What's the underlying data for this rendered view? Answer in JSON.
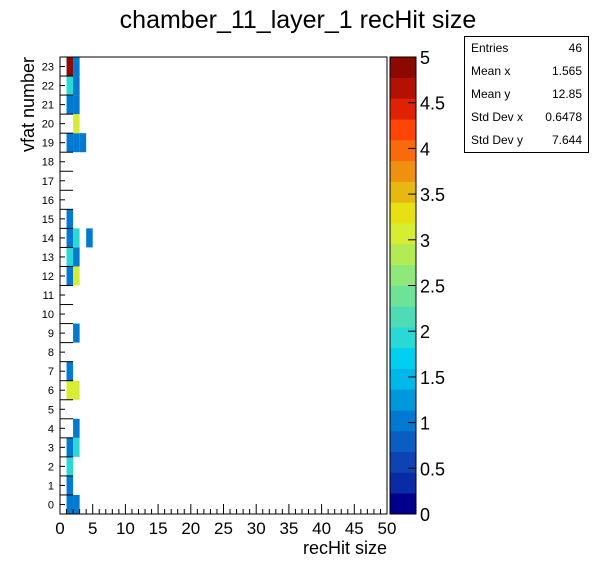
{
  "chart_data": {
    "type": "heatmap",
    "title": "chamber_11_layer_1 recHit size",
    "xlabel": "recHit size",
    "ylabel": "vfat number",
    "xlim": [
      0,
      50
    ],
    "ylim": [
      0,
      24
    ],
    "x_ticks": [
      "0",
      "5",
      "10",
      "15",
      "20",
      "25",
      "30",
      "35",
      "40",
      "45",
      "50"
    ],
    "y_ticks": [
      "0",
      "1",
      "2",
      "3",
      "4",
      "5",
      "6",
      "7",
      "8",
      "9",
      "10",
      "11",
      "12",
      "13",
      "14",
      "15",
      "16",
      "17",
      "18",
      "19",
      "20",
      "21",
      "22",
      "23"
    ],
    "z_range": [
      0,
      5
    ],
    "z_ticks": [
      "0",
      "0.5",
      "1",
      "1.5",
      "2",
      "2.5",
      "3",
      "3.5",
      "4",
      "4.5",
      "5"
    ],
    "palette": [
      "#00008c",
      "#0a2ba6",
      "#0d43b3",
      "#0a5ec2",
      "#007ad0",
      "#0098dd",
      "#00b7ea",
      "#00cff2",
      "#2ad9d6",
      "#4ddcb6",
      "#6ee397",
      "#8fe87a",
      "#b3eb55",
      "#d6ed34",
      "#e6e014",
      "#e8b812",
      "#f09010",
      "#f86a0c",
      "#ff4408",
      "#e02204",
      "#b51102",
      "#8a0a00"
    ],
    "cells": [
      {
        "x": 1,
        "y": 0,
        "z": 1
      },
      {
        "x": 2,
        "y": 0,
        "z": 1
      },
      {
        "x": 1,
        "y": 1,
        "z": 1
      },
      {
        "x": 1,
        "y": 2,
        "z": 2
      },
      {
        "x": 1,
        "y": 3,
        "z": 1
      },
      {
        "x": 2,
        "y": 3,
        "z": 2
      },
      {
        "x": 2,
        "y": 4,
        "z": 1
      },
      {
        "x": 1,
        "y": 6,
        "z": 3
      },
      {
        "x": 2,
        "y": 6,
        "z": 3
      },
      {
        "x": 1,
        "y": 7,
        "z": 1
      },
      {
        "x": 2,
        "y": 9,
        "z": 1
      },
      {
        "x": 1,
        "y": 12,
        "z": 1
      },
      {
        "x": 2,
        "y": 12,
        "z": 3
      },
      {
        "x": 1,
        "y": 13,
        "z": 2
      },
      {
        "x": 2,
        "y": 13,
        "z": 1
      },
      {
        "x": 1,
        "y": 14,
        "z": 1
      },
      {
        "x": 2,
        "y": 14,
        "z": 2
      },
      {
        "x": 4,
        "y": 14,
        "z": 1
      },
      {
        "x": 1,
        "y": 15,
        "z": 1
      },
      {
        "x": 1,
        "y": 19,
        "z": 1
      },
      {
        "x": 2,
        "y": 19,
        "z": 1
      },
      {
        "x": 3,
        "y": 19,
        "z": 1
      },
      {
        "x": 2,
        "y": 20,
        "z": 3
      },
      {
        "x": 1,
        "y": 21,
        "z": 1
      },
      {
        "x": 2,
        "y": 21,
        "z": 1
      },
      {
        "x": 1,
        "y": 22,
        "z": 2
      },
      {
        "x": 2,
        "y": 22,
        "z": 1
      },
      {
        "x": 1,
        "y": 23,
        "z": 5
      },
      {
        "x": 2,
        "y": 23,
        "z": 1
      }
    ],
    "legend": "top-right",
    "grid": false
  },
  "stats_box": {
    "entries_label": "Entries",
    "entries_value": "46",
    "meanx_label": "Mean x",
    "meanx_value": "1.565",
    "meany_label": "Mean y",
    "meany_value": "12.85",
    "stdx_label": "Std Dev x",
    "stdx_value": "0.6478",
    "stdy_label": "Std Dev y",
    "stdy_value": "7.644"
  }
}
